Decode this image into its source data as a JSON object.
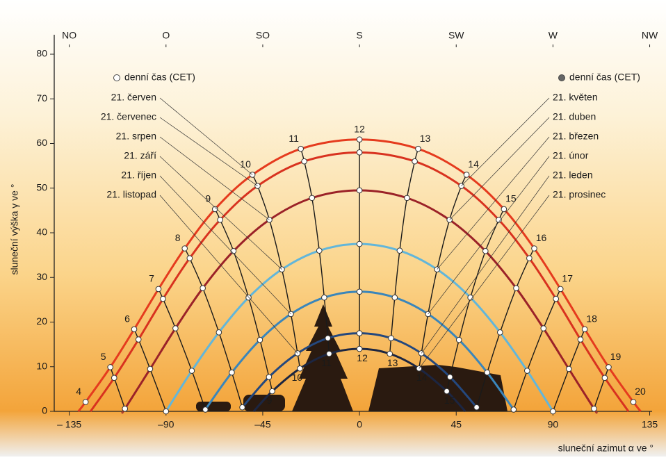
{
  "chart_data": {
    "type": "sunpath",
    "y_label": "sluneční výška γ ve °",
    "x_label": "sluneční azimut α ve °",
    "xlim": [
      -142,
      140
    ],
    "ylim": [
      0,
      80
    ],
    "xticks": [
      {
        "value": -135,
        "label": "– 135"
      },
      {
        "value": -90,
        "label": "–90"
      },
      {
        "value": -45,
        "label": "–45"
      },
      0,
      45,
      90,
      135
    ],
    "yticks": [
      0,
      10,
      20,
      30,
      40,
      50,
      60,
      70,
      80
    ],
    "x2ticks": [
      {
        "value": -135,
        "label": "NO"
      },
      {
        "value": -90,
        "label": "O"
      },
      {
        "value": -45,
        "label": "SO"
      },
      {
        "value": 0,
        "label": "S"
      },
      {
        "value": 45,
        "label": "SW"
      },
      {
        "value": 90,
        "label": "W"
      },
      {
        "value": 135,
        "label": "NW"
      }
    ],
    "legend": [
      {
        "label": "denní čas (CET)",
        "marker": "open"
      },
      {
        "label": "denní čas (CET)",
        "marker": "filled"
      }
    ],
    "series": [
      {
        "label_left": "21. červen",
        "color": "#e53b1e",
        "show_hours": true,
        "x": [
          -130.8,
          -127.4,
          -115.9,
          -104.8,
          -93.5,
          -81.3,
          -67.2,
          -49.8,
          -27.3,
          0,
          27.3,
          49.8,
          67.2,
          81.3,
          93.5,
          104.8,
          115.9,
          127.4,
          130.8
        ],
        "values": [
          0,
          2.1,
          9.9,
          18.4,
          27.4,
          36.5,
          45.3,
          53.0,
          58.8,
          60.9,
          58.8,
          53.0,
          45.3,
          36.5,
          27.4,
          18.4,
          9.9,
          2.1,
          0
        ],
        "hours": [
          null,
          4,
          5,
          6,
          7,
          8,
          9,
          10,
          11,
          12,
          13,
          14,
          15,
          16,
          17,
          18,
          19,
          20,
          null
        ]
      },
      {
        "label_left": "21. červenec",
        "label_right": "21. květen",
        "color": "#d8321f",
        "show_hours": false,
        "x": [
          -125.1,
          -114.1,
          -102.8,
          -91.4,
          -79.0,
          -64.8,
          -47.4,
          -25.7,
          0,
          25.7,
          47.4,
          64.8,
          79.0,
          91.4,
          102.8,
          114.1,
          125.1
        ],
        "values": [
          0,
          7.5,
          16.1,
          25.2,
          34.3,
          42.9,
          50.5,
          56.0,
          58.0,
          56.0,
          50.5,
          42.9,
          34.3,
          25.2,
          16.1,
          7.5,
          0
        ],
        "hours": [
          null,
          5,
          6,
          7,
          8,
          9,
          10,
          11,
          12,
          13,
          14,
          15,
          16,
          17,
          18,
          19,
          null
        ]
      },
      {
        "label_left": "21. srpen",
        "label_right": "21. duben",
        "color": "#9b2228",
        "show_hours": false,
        "x": [
          -110.0,
          -109.1,
          -97.4,
          -85.6,
          -72.9,
          -58.6,
          -41.9,
          -22.1,
          0,
          22.1,
          41.9,
          58.6,
          72.9,
          85.6,
          97.4,
          109.1,
          110.0
        ],
        "values": [
          0,
          0.6,
          9.5,
          18.6,
          27.6,
          35.9,
          42.9,
          47.8,
          49.5,
          47.8,
          42.9,
          35.9,
          27.6,
          18.6,
          9.5,
          0.6,
          0
        ],
        "hours": [
          null,
          5,
          6,
          7,
          8,
          9,
          10,
          11,
          12,
          13,
          14,
          15,
          16,
          17,
          18,
          19,
          null
        ]
      },
      {
        "label_left": "21. září",
        "label_right": "21. březen",
        "color": "#62b6da",
        "show_hours": false,
        "x": [
          -90,
          -78.0,
          -65.4,
          -51.6,
          -36.1,
          -18.7,
          0,
          18.7,
          36.1,
          51.6,
          65.4,
          78.0,
          90
        ],
        "values": [
          0,
          9.1,
          17.7,
          25.5,
          31.8,
          36.0,
          37.5,
          36.0,
          31.8,
          25.5,
          17.7,
          9.1,
          0
        ],
        "hours": [
          6,
          7,
          8,
          9,
          10,
          11,
          12,
          13,
          14,
          15,
          16,
          17,
          18
        ]
      },
      {
        "label_left": "21. říjen",
        "label_right": "21. únor",
        "color": "#3a86bb",
        "show_hours": false,
        "x": [
          -71.7,
          -59.4,
          -46.3,
          -31.9,
          -16.4,
          0,
          16.4,
          31.9,
          46.3,
          59.4,
          71.7
        ],
        "values": [
          0.4,
          8.7,
          16.0,
          21.8,
          25.5,
          26.8,
          25.5,
          21.8,
          16.0,
          8.7,
          0.4
        ],
        "hours": [
          7,
          8,
          9,
          10,
          11,
          12,
          13,
          14,
          15,
          16,
          17
        ]
      },
      {
        "label_left": "21. listopad",
        "label_right": "21. leden",
        "color": "#24487e",
        "show_hours": false,
        "x": [
          -54.5,
          -42.1,
          -28.8,
          -14.7,
          0,
          14.7,
          28.8,
          42.1,
          54.5
        ],
        "values": [
          0.9,
          7.7,
          13.0,
          16.4,
          17.5,
          16.4,
          13.0,
          7.7,
          0.9
        ],
        "hours": [
          8,
          9,
          10,
          11,
          12,
          13,
          14,
          15,
          16
        ]
      },
      {
        "label_right": "21. prosinec",
        "color": "#1c2642",
        "show_hours": true,
        "x": [
          -49.2,
          -40.6,
          -27.7,
          -14.1,
          0,
          14.1,
          27.7,
          40.6,
          49.2
        ],
        "values": [
          0,
          4.5,
          9.6,
          12.9,
          14.0,
          12.9,
          9.6,
          4.5,
          0
        ],
        "hours": [
          null,
          9,
          10,
          11,
          12,
          13,
          14,
          15,
          null
        ]
      }
    ]
  }
}
